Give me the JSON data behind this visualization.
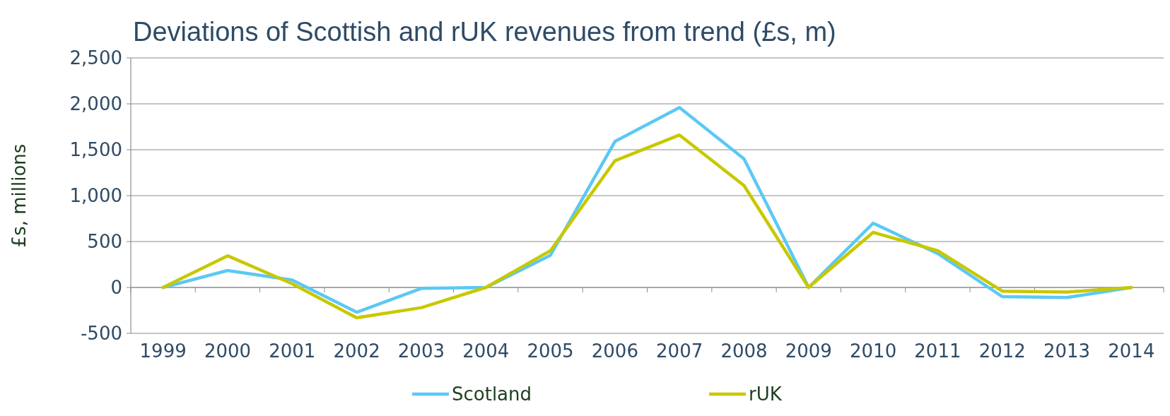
{
  "chart_data": {
    "type": "line",
    "title": "Deviations of Scottish and rUK revenues from trend (£s, m)",
    "ylabel": "£s, millions",
    "categories": [
      "1999",
      "2000",
      "2001",
      "2002",
      "2003",
      "2004",
      "2005",
      "2006",
      "2007",
      "2008",
      "2009",
      "2010",
      "2011",
      "2012",
      "2013",
      "2014"
    ],
    "series": [
      {
        "name": "Scotland",
        "color": "#5bc8f5",
        "values": [
          0,
          185,
          80,
          -270,
          -10,
          0,
          350,
          1590,
          1960,
          1400,
          0,
          700,
          370,
          -100,
          -110,
          0
        ]
      },
      {
        "name": "rUK",
        "color": "#c8c800",
        "values": [
          0,
          345,
          40,
          -330,
          -220,
          0,
          400,
          1380,
          1660,
          1110,
          0,
          600,
          400,
          -40,
          -50,
          0
        ]
      }
    ],
    "ylim": [
      -500,
      2500
    ],
    "yticks": [
      {
        "value": -500,
        "label": "-500"
      },
      0,
      500,
      {
        "value": 1000,
        "label": "1,000"
      },
      {
        "value": 1500,
        "label": "1,500"
      },
      {
        "value": 2000,
        "label": "2,000"
      },
      {
        "value": 2500,
        "label": "2,500"
      }
    ],
    "grid": "y",
    "legend": "bottom",
    "marker": "none",
    "line_style": "solid"
  }
}
